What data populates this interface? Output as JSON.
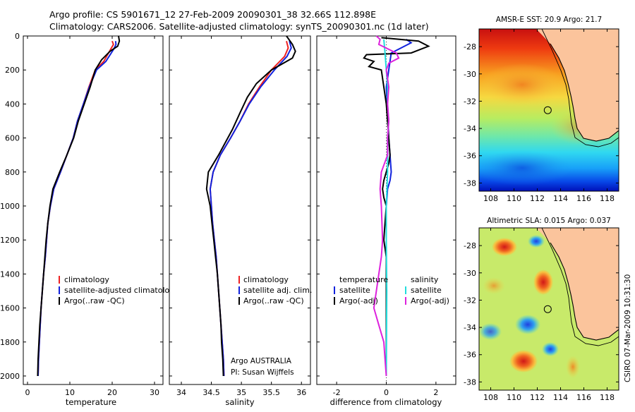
{
  "header": {
    "line1": "Argo profile: CS 5901671_12 27-Feb-2009 20090301_38 32.66S 112.898E",
    "line2": "Climatology: CARS2006. Satellite-adjusted climatology: synTS_20090301.nc (1d later)"
  },
  "side_label": "CSIRO 07-Mar-2009 10:31:30",
  "colors": {
    "climatology": "#ee2222",
    "satellite": "#1122dd",
    "argo": "#000000",
    "temperature_satellite": "#1122dd",
    "salinity_satellite": "#22dddd",
    "salinity_argo": "#dd22dd",
    "land": "#fbc49c"
  },
  "chart_data": [
    {
      "type": "line",
      "panel": "temperature",
      "xlabel": "temperature",
      "ylabel": "",
      "xlim": [
        -1,
        32
      ],
      "ylim": [
        2050,
        0
      ],
      "y_reversed": true,
      "xticks": [
        0,
        10,
        20,
        30
      ],
      "yticks": [
        0,
        200,
        400,
        600,
        800,
        1000,
        1200,
        1400,
        1600,
        1800,
        2000
      ],
      "legend": [
        "climatology",
        "satellite-adjusted climatolo",
        "Argo(..raw -QC)"
      ],
      "series": [
        {
          "name": "climatology",
          "color_key": "climatology",
          "points": [
            [
              20.0,
              30
            ],
            [
              20.3,
              50
            ],
            [
              19.6,
              80
            ],
            [
              18.0,
              150
            ],
            [
              16.0,
              200
            ],
            [
              14.5,
              300
            ],
            [
              13.2,
              400
            ],
            [
              11.8,
              500
            ],
            [
              10.8,
              600
            ],
            [
              9.3,
              700
            ],
            [
              7.8,
              800
            ],
            [
              6.2,
              900
            ],
            [
              5.4,
              1000
            ],
            [
              4.8,
              1100
            ],
            [
              4.5,
              1200
            ],
            [
              4.2,
              1300
            ],
            [
              3.8,
              1400
            ],
            [
              3.5,
              1500
            ],
            [
              3.2,
              1600
            ],
            [
              3.0,
              1700
            ],
            [
              2.8,
              1800
            ],
            [
              2.6,
              1900
            ],
            [
              2.5,
              2000
            ]
          ]
        },
        {
          "name": "satellite-adjusted climatolo",
          "color_key": "satellite",
          "points": [
            [
              20.8,
              30
            ],
            [
              20.9,
              50
            ],
            [
              20.3,
              80
            ],
            [
              18.5,
              150
            ],
            [
              16.3,
              200
            ],
            [
              14.6,
              300
            ],
            [
              13.2,
              400
            ],
            [
              11.8,
              500
            ],
            [
              10.8,
              600
            ],
            [
              9.3,
              700
            ],
            [
              7.8,
              800
            ],
            [
              6.2,
              900
            ],
            [
              5.4,
              1000
            ],
            [
              4.8,
              1100
            ],
            [
              4.5,
              1200
            ],
            [
              4.2,
              1300
            ],
            [
              3.8,
              1400
            ],
            [
              3.5,
              1500
            ],
            [
              3.2,
              1600
            ],
            [
              3.0,
              1700
            ],
            [
              2.8,
              1800
            ],
            [
              2.6,
              1900
            ],
            [
              2.5,
              2000
            ]
          ]
        },
        {
          "name": "Argo(..raw -QC)",
          "color_key": "argo",
          "points": [
            [
              21.5,
              0
            ],
            [
              21.7,
              30
            ],
            [
              21.3,
              60
            ],
            [
              19.5,
              90
            ],
            [
              17.5,
              140
            ],
            [
              16.0,
              200
            ],
            [
              14.8,
              300
            ],
            [
              13.4,
              400
            ],
            [
              12.0,
              500
            ],
            [
              10.9,
              600
            ],
            [
              9.3,
              700
            ],
            [
              7.6,
              800
            ],
            [
              6.0,
              900
            ],
            [
              5.3,
              1000
            ],
            [
              4.8,
              1100
            ],
            [
              4.4,
              1200
            ],
            [
              4.1,
              1300
            ],
            [
              3.8,
              1400
            ],
            [
              3.5,
              1500
            ],
            [
              3.2,
              1600
            ],
            [
              2.9,
              1700
            ],
            [
              2.7,
              1800
            ],
            [
              2.5,
              1900
            ],
            [
              2.4,
              2000
            ]
          ]
        }
      ]
    },
    {
      "type": "line",
      "panel": "salinity",
      "xlabel": "salinity",
      "ylabel": "",
      "xlim": [
        33.8,
        36.15
      ],
      "ylim": [
        2050,
        0
      ],
      "y_reversed": true,
      "xticks": [
        34,
        34.5,
        35,
        35.5,
        36
      ],
      "legend": [
        "climatology",
        "satellite adj. clim.",
        "Argo(..raw -QC)"
      ],
      "annotation": [
        "Argo AUSTRALIA",
        "PI: Susan Wijffels"
      ],
      "series": [
        {
          "name": "climatology",
          "color_key": "climatology",
          "points": [
            [
              35.75,
              30
            ],
            [
              35.78,
              70
            ],
            [
              35.72,
              120
            ],
            [
              35.5,
              200
            ],
            [
              35.3,
              300
            ],
            [
              35.12,
              400
            ],
            [
              34.98,
              500
            ],
            [
              34.82,
              600
            ],
            [
              34.65,
              700
            ],
            [
              34.53,
              800
            ],
            [
              34.48,
              900
            ],
            [
              34.5,
              1000
            ],
            [
              34.52,
              1100
            ],
            [
              34.55,
              1200
            ],
            [
              34.58,
              1300
            ],
            [
              34.6,
              1400
            ],
            [
              34.62,
              1500
            ],
            [
              34.64,
              1600
            ],
            [
              34.66,
              1700
            ],
            [
              34.68,
              1800
            ],
            [
              34.7,
              1900
            ],
            [
              34.71,
              2000
            ]
          ]
        },
        {
          "name": "satellite adj. clim.",
          "color_key": "satellite",
          "points": [
            [
              35.8,
              30
            ],
            [
              35.83,
              70
            ],
            [
              35.76,
              120
            ],
            [
              35.55,
              200
            ],
            [
              35.32,
              300
            ],
            [
              35.13,
              400
            ],
            [
              34.98,
              500
            ],
            [
              34.82,
              600
            ],
            [
              34.65,
              700
            ],
            [
              34.53,
              800
            ],
            [
              34.48,
              900
            ],
            [
              34.5,
              1000
            ],
            [
              34.52,
              1100
            ],
            [
              34.55,
              1200
            ],
            [
              34.58,
              1300
            ],
            [
              34.6,
              1400
            ],
            [
              34.62,
              1500
            ],
            [
              34.64,
              1600
            ],
            [
              34.66,
              1700
            ],
            [
              34.68,
              1800
            ],
            [
              34.7,
              1900
            ],
            [
              34.71,
              2000
            ]
          ]
        },
        {
          "name": "Argo(..raw -QC)",
          "color_key": "argo",
          "points": [
            [
              35.75,
              0
            ],
            [
              35.85,
              50
            ],
            [
              35.9,
              90
            ],
            [
              35.85,
              130
            ],
            [
              35.5,
              200
            ],
            [
              35.25,
              280
            ],
            [
              35.1,
              360
            ],
            [
              34.98,
              450
            ],
            [
              34.85,
              550
            ],
            [
              34.62,
              700
            ],
            [
              34.45,
              800
            ],
            [
              34.42,
              900
            ],
            [
              34.48,
              1000
            ],
            [
              34.51,
              1100
            ],
            [
              34.54,
              1200
            ],
            [
              34.57,
              1300
            ],
            [
              34.6,
              1400
            ],
            [
              34.62,
              1500
            ],
            [
              34.64,
              1600
            ],
            [
              34.66,
              1700
            ],
            [
              34.67,
              1800
            ],
            [
              34.69,
              1900
            ],
            [
              34.7,
              2000
            ]
          ]
        }
      ]
    },
    {
      "type": "line",
      "panel": "difference",
      "xlabel": "difference from climatology",
      "ylabel": "",
      "xlim": [
        -2.8,
        2.8
      ],
      "ylim": [
        2050,
        0
      ],
      "y_reversed": true,
      "xticks": [
        -2,
        0,
        2
      ],
      "legend_left_title": "temperature",
      "legend_left": [
        "satellite",
        "Argo(-adj)"
      ],
      "legend_right_title": "salinity",
      "legend_right": [
        "satellite",
        "Argo(-adj)"
      ],
      "series": [
        {
          "name": "temperature satellite",
          "color_key": "temperature_satellite",
          "points": [
            [
              0.8,
              20
            ],
            [
              1.0,
              40
            ],
            [
              0.6,
              70
            ],
            [
              0.2,
              100
            ],
            [
              0.1,
              200
            ],
            [
              0.0,
              300
            ],
            [
              0.05,
              450
            ],
            [
              0.1,
              600
            ],
            [
              0.15,
              700
            ],
            [
              0.2,
              800
            ],
            [
              0.15,
              850
            ],
            [
              0.05,
              900
            ],
            [
              0.0,
              1000
            ],
            [
              0.0,
              1500
            ],
            [
              0.0,
              2000
            ]
          ]
        },
        {
          "name": "temperature Argo(-adj)",
          "color_key": "argo",
          "points": [
            [
              -0.2,
              10
            ],
            [
              1.3,
              30
            ],
            [
              1.7,
              60
            ],
            [
              1.0,
              100
            ],
            [
              -0.8,
              110
            ],
            [
              -0.9,
              130
            ],
            [
              -0.5,
              150
            ],
            [
              -0.7,
              180
            ],
            [
              -0.2,
              200
            ],
            [
              -0.1,
              300
            ],
            [
              0.0,
              400
            ],
            [
              0.05,
              500
            ],
            [
              0.1,
              600
            ],
            [
              0.15,
              700
            ],
            [
              0.1,
              750
            ],
            [
              -0.1,
              850
            ],
            [
              -0.15,
              900
            ],
            [
              -0.1,
              950
            ],
            [
              0.0,
              1000
            ],
            [
              -0.05,
              1100
            ],
            [
              -0.1,
              1200
            ],
            [
              0.0,
              1300
            ],
            [
              0.0,
              1500
            ],
            [
              0.0,
              2000
            ]
          ]
        },
        {
          "name": "salinity satellite",
          "color_key": "salinity_satellite",
          "points": [
            [
              -0.1,
              20
            ],
            [
              -0.05,
              100
            ],
            [
              0.0,
              200
            ],
            [
              0.05,
              300
            ],
            [
              0.05,
              400
            ],
            [
              0.1,
              500
            ],
            [
              0.05,
              600
            ],
            [
              0.05,
              800
            ],
            [
              0.0,
              1000
            ],
            [
              0.0,
              1200
            ],
            [
              0.02,
              1500
            ],
            [
              0.0,
              2000
            ]
          ]
        },
        {
          "name": "salinity Argo(-adj)",
          "color_key": "salinity_argo",
          "points": [
            [
              -0.4,
              0
            ],
            [
              -0.25,
              20
            ],
            [
              -0.3,
              50
            ],
            [
              0.4,
              100
            ],
            [
              0.5,
              130
            ],
            [
              0.1,
              160
            ],
            [
              0.0,
              200
            ],
            [
              0.1,
              300
            ],
            [
              0.05,
              400
            ],
            [
              0.1,
              500
            ],
            [
              0.05,
              600
            ],
            [
              0.05,
              700
            ],
            [
              -0.2,
              800
            ],
            [
              -0.25,
              900
            ],
            [
              -0.2,
              1000
            ],
            [
              -0.15,
              1200
            ],
            [
              -0.2,
              1300
            ],
            [
              -0.3,
              1400
            ],
            [
              -0.4,
              1500
            ],
            [
              -0.5,
              1600
            ],
            [
              -0.3,
              1700
            ],
            [
              -0.1,
              1800
            ],
            [
              -0.05,
              1900
            ],
            [
              0.0,
              2000
            ]
          ]
        }
      ]
    },
    {
      "type": "heatmap",
      "panel": "sst-map",
      "title": "AMSR-E SST: 20.9 Argo: 21.7",
      "xlim": [
        107,
        119
      ],
      "ylim": [
        -38.6,
        -26.7
      ],
      "xticks": [
        108,
        110,
        112,
        114,
        116,
        118
      ],
      "yticks": [
        -28,
        -30,
        -32,
        -34,
        -36,
        -38
      ],
      "marker": {
        "lon": 112.898,
        "lat": -32.66
      }
    },
    {
      "type": "heatmap",
      "panel": "sla-map",
      "title": "Altimetric SLA: 0.015 Argo: 0.037",
      "xlim": [
        107,
        119
      ],
      "ylim": [
        -38.6,
        -26.7
      ],
      "xticks": [
        108,
        110,
        112,
        114,
        116,
        118
      ],
      "yticks": [
        -28,
        -30,
        -32,
        -34,
        -36,
        -38
      ],
      "marker": {
        "lon": 112.898,
        "lat": -32.66
      }
    }
  ]
}
